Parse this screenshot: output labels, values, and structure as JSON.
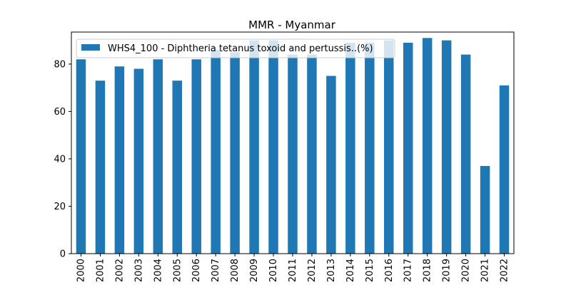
{
  "chart_data": {
    "type": "bar",
    "title": "MMR - Myanmar",
    "xlabel": "",
    "ylabel": "",
    "categories": [
      "2000",
      "2001",
      "2002",
      "2003",
      "2004",
      "2005",
      "2006",
      "2007",
      "2008",
      "2009",
      "2010",
      "2011",
      "2012",
      "2013",
      "2014",
      "2015",
      "2016",
      "2017",
      "2018",
      "2019",
      "2020",
      "2021",
      "2022"
    ],
    "series": [
      {
        "name": "WHS4_100 - Diphtheria tetanus toxoid and pertussis..(%)",
        "color": "#1f77b4",
        "values": [
          82,
          73,
          79,
          78,
          82,
          73,
          82,
          86,
          85,
          90,
          90,
          84,
          84,
          75,
          89,
          89,
          90,
          89,
          91,
          90,
          84,
          37,
          71
        ]
      }
    ],
    "ylim": [
      0,
      93.5
    ],
    "yticks": [
      0,
      20,
      40,
      60,
      80
    ],
    "grid": false,
    "legend_position": "top-left"
  }
}
